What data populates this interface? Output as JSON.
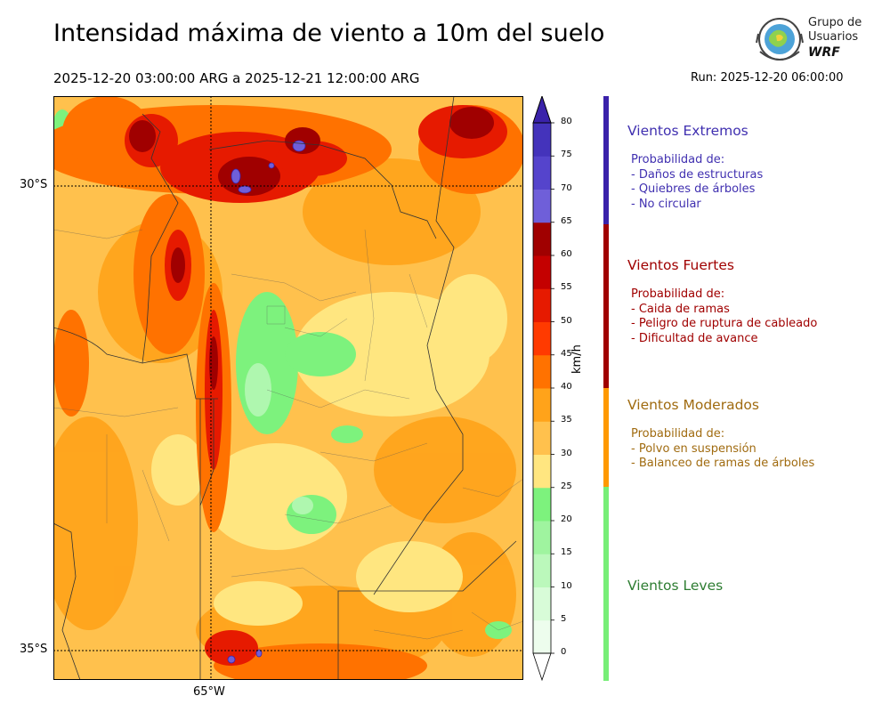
{
  "header": {
    "title": "Intensidad máxima de viento a 10m del suelo",
    "date_range": "2025-12-20 03:00:00 ARG  a  2025-12-21 12:00:00 ARG",
    "run": "Run: 2025-12-20 06:00:00"
  },
  "logo": {
    "line1": "Grupo de",
    "line2": "Usuarios",
    "line3": "WRF"
  },
  "map": {
    "lat_labels": [
      "30°S",
      "35°S"
    ],
    "lon_labels": [
      "65°W"
    ]
  },
  "colorbar": {
    "unit": "km/h",
    "ticks": [
      "0",
      "5",
      "10",
      "15",
      "20",
      "25",
      "30",
      "35",
      "40",
      "45",
      "50",
      "55",
      "60",
      "65",
      "70",
      "75",
      "80"
    ],
    "colors": [
      "#edfded",
      "#d8fcd8",
      "#bbf8bb",
      "#9ff49f",
      "#7df27d",
      "#ffe680",
      "#ffc14d",
      "#ffa31a",
      "#ff7200",
      "#ff3a00",
      "#e61a00",
      "#c40000",
      "#a00000",
      "#6f5fd9",
      "#5544cc",
      "#4433bb",
      "#3a22aa"
    ],
    "over_color": "#3a22aa",
    "under_color": "#ffffff"
  },
  "categories": [
    {
      "title": "Vientos Extremos",
      "color": "#4030b0",
      "bar_color": "#3a22aa",
      "lines": [
        "Probabilidad de:",
        "- Daños de estructuras",
        "- Quiebres de árboles",
        "- No circular"
      ]
    },
    {
      "title": "Vientos Fuertes",
      "color": "#a00000",
      "bar_color": "#a00000",
      "lines": [
        "Probabilidad de:",
        "- Caida de ramas",
        "- Peligro de ruptura de cableado",
        "- Dificultad de avance"
      ]
    },
    {
      "title": "Vientos Moderados",
      "color": "#a06b10",
      "bar_color": "#ff9900",
      "lines": [
        "Probabilidad de:",
        "- Polvo en suspensión",
        "- Balanceo de ramas de árboles"
      ]
    },
    {
      "title": "Vientos Leves",
      "color": "#2e7d32",
      "bar_color": "#77ee77",
      "lines": []
    }
  ]
}
